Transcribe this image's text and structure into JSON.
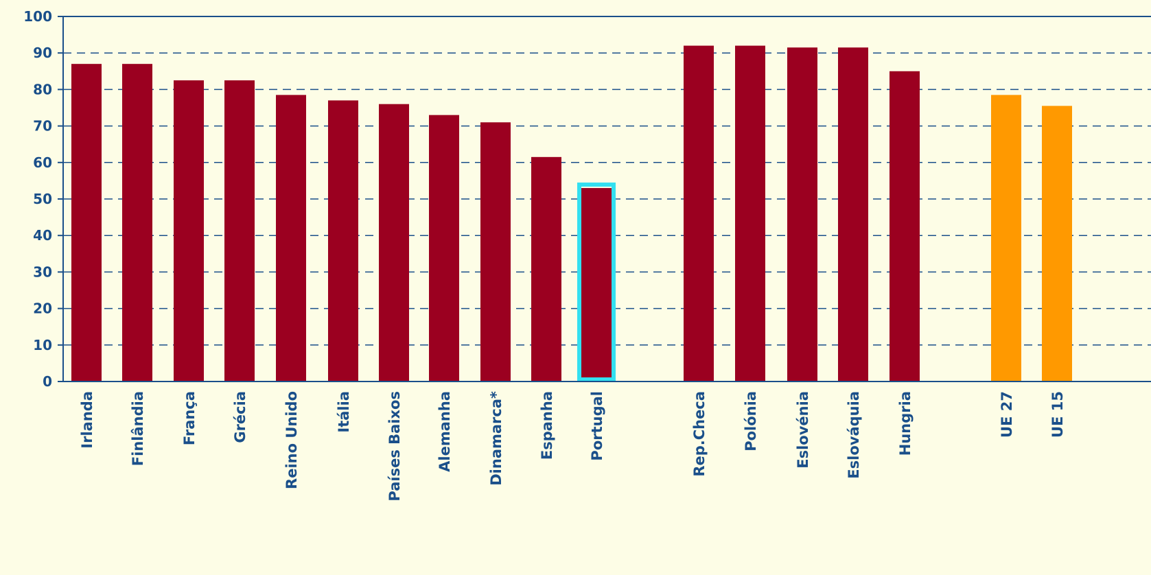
{
  "colors": {
    "background": "#fdfde6",
    "bar_default": "#9b0020",
    "bar_eu": "#ff9900",
    "highlight_outline": "#33e0f0",
    "axis": "#1a4f8a",
    "gridline": "#1a4f8a"
  },
  "chart_data": {
    "type": "bar",
    "title": "",
    "xlabel": "",
    "ylabel": "",
    "ylim": [
      0,
      100
    ],
    "yticks": [
      "0",
      "10",
      "20",
      "30",
      "40",
      "50",
      "60",
      "70",
      "80",
      "90",
      "100"
    ],
    "grid": true,
    "legend": "none",
    "categories": [
      "Irlanda",
      "Finlândia",
      "França",
      "Grécia",
      "Reino Unido",
      "Itália",
      "Países Baixos",
      "Alemanha",
      "Dinamarca*",
      "Espanha",
      "Portugal",
      "Rep.Checa",
      "Polónia",
      "Eslovénia",
      "Eslováquia",
      "Hungria",
      "UE 27",
      "UE 15"
    ],
    "values": [
      87,
      87,
      82.5,
      82.5,
      78.5,
      77,
      76,
      73,
      71,
      61.5,
      53,
      92,
      92,
      91.5,
      91.5,
      85,
      78.5,
      75.5
    ],
    "groups": [
      "old",
      "old",
      "old",
      "old",
      "old",
      "old",
      "old",
      "old",
      "old",
      "old",
      "old",
      "new",
      "new",
      "new",
      "new",
      "new",
      "eu",
      "eu"
    ],
    "highlight": "Portugal"
  }
}
